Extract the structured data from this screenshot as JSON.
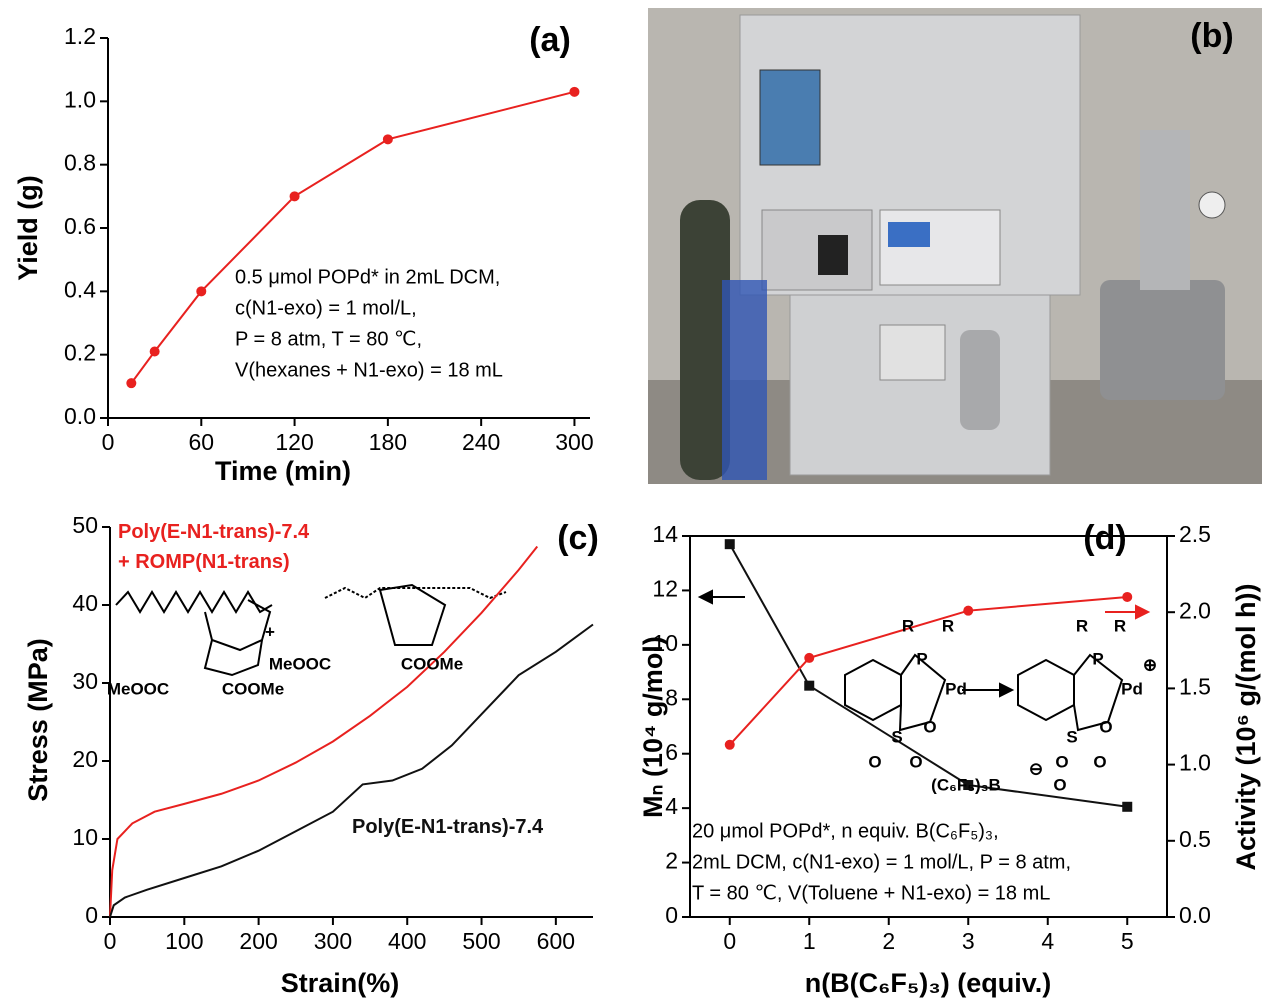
{
  "chart_data": [
    {
      "type": "line",
      "label": "(a)",
      "xlabel": "Time (min)",
      "ylabel": "Yield (g)",
      "x": [
        15,
        30,
        60,
        120,
        180,
        300
      ],
      "series": [
        {
          "color": "#e8211f",
          "marker": "circle",
          "values": [
            0.11,
            0.21,
            0.4,
            0.7,
            0.88,
            1.03
          ]
        }
      ],
      "xlim": [
        0,
        310
      ],
      "xticks": [
        0,
        60,
        120,
        180,
        240,
        300
      ],
      "ylim": [
        0,
        1.2
      ],
      "yticks": [
        {
          "value": 0,
          "label": "0.0"
        },
        {
          "value": 0.2,
          "label": "0.2"
        },
        {
          "value": 0.4,
          "label": "0.4"
        },
        {
          "value": 0.6,
          "label": "0.6"
        },
        {
          "value": 0.8,
          "label": "0.8"
        },
        {
          "value": 1.0,
          "label": "1.0"
        },
        {
          "value": 1.2,
          "label": "1.2"
        }
      ],
      "annotation": [
        "0.5 μmol POPd* in 2mL DCM,",
        "c(N1-exo) = 1 mol/L,",
        "P = 8 atm, T = 80 ℃,",
        "V(hexanes + N1-exo) = 18 mL"
      ]
    },
    {
      "type": "line",
      "label": "(c)",
      "xlabel": "Strain(%)",
      "ylabel": "Stress (MPa)",
      "series": [
        {
          "name": "Poly(E-N1-trans)-7.4\n+ ROMP(N1-trans)",
          "color": "#e8211f",
          "x": [
            0,
            3,
            10,
            30,
            60,
            100,
            150,
            200,
            250,
            300,
            350,
            400,
            450,
            500,
            550,
            575
          ],
          "values": [
            0,
            6,
            10,
            12,
            13.5,
            14.5,
            15.8,
            17.5,
            19.8,
            22.5,
            25.8,
            29.5,
            34,
            39,
            44.5,
            47.5
          ]
        },
        {
          "name": "Poly(E-N1-trans)-7.4",
          "color": "#111111",
          "x": [
            0,
            5,
            20,
            50,
            100,
            150,
            200,
            250,
            300,
            340,
            380,
            420,
            460,
            500,
            550,
            600,
            650
          ],
          "values": [
            0,
            1.5,
            2.5,
            3.5,
            5,
            6.5,
            8.5,
            11,
            13.5,
            17,
            17.5,
            19,
            22,
            26,
            31,
            34,
            37.5
          ]
        }
      ],
      "xlim": [
        0,
        650
      ],
      "xticks": [
        0,
        100,
        200,
        300,
        400,
        500,
        600
      ],
      "ylim": [
        0,
        50
      ],
      "yticks": [
        0,
        10,
        20,
        30,
        40,
        50
      ],
      "structure_labels": [
        "MeOOC",
        "COOMe",
        "+",
        "MeOOC",
        "COOMe"
      ]
    },
    {
      "type": "line",
      "label": "(d)",
      "xlabel": "n(B(C₆F₅)₃) (equiv.)",
      "ylabel": "Mₙ (10⁴ g/mol)",
      "y2label": "Activity (10⁶ g/(mol h))",
      "x": [
        0,
        1,
        3,
        5
      ],
      "series": [
        {
          "color": "#111111",
          "marker": "square",
          "values": [
            13.7,
            8.5,
            4.85,
            4.05
          ]
        },
        {
          "color": "#e8211f",
          "marker": "circle",
          "axis": "y2",
          "values": [
            1.13,
            1.7,
            2.01,
            2.1
          ]
        }
      ],
      "xlim": [
        -0.5,
        5.5
      ],
      "xticks": [
        0,
        1,
        2,
        3,
        4,
        5
      ],
      "ylim": [
        0,
        14
      ],
      "yticks": [
        0,
        2,
        4,
        6,
        8,
        10,
        12,
        14
      ],
      "y2lim": [
        0,
        2.5
      ],
      "y2ticks": [
        {
          "value": 0,
          "label": "0.0"
        },
        {
          "value": 0.5,
          "label": "0.5"
        },
        {
          "value": 1.0,
          "label": "1.0"
        },
        {
          "value": 1.5,
          "label": "1.5"
        },
        {
          "value": 2.0,
          "label": "2.0"
        },
        {
          "value": 2.5,
          "label": "2.5"
        }
      ],
      "annotation": [
        "20 μmol POPd*, n equiv. B(C₆F₅)₃,",
        "2mL DCM, c(N1-exo) = 1 mol/L, P = 8 atm,",
        "T = 80 ℃, V(Toluene + N1-exo) = 18 mL"
      ],
      "structure_labels": [
        "R",
        "R",
        "P",
        "Pd",
        "S",
        "O",
        "O",
        "O",
        "R",
        "R",
        "P",
        "Pd",
        "⊕",
        "S",
        "O",
        "O",
        "O",
        "(C₆F₅)₃B",
        "⊖",
        "O"
      ]
    }
  ],
  "photo": {
    "label": "(b)"
  }
}
